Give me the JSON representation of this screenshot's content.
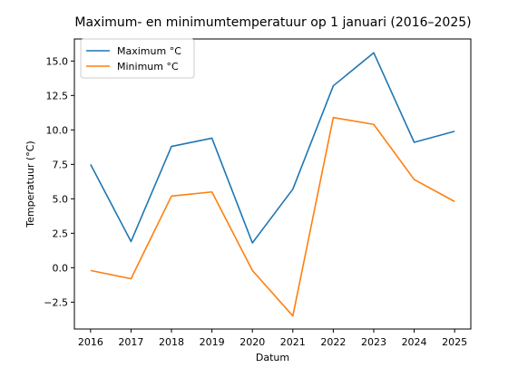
{
  "chart_data": {
    "type": "line",
    "title": "Maximum- en minimumtemperatuur op 1 januari (2016–2025)",
    "xlabel": "Datum",
    "ylabel": "Temperatuur (°C)",
    "categories": [
      "2016",
      "2017",
      "2018",
      "2019",
      "2020",
      "2021",
      "2022",
      "2023",
      "2024",
      "2025"
    ],
    "x": [
      2016,
      2017,
      2018,
      2019,
      2020,
      2021,
      2022,
      2023,
      2024,
      2025
    ],
    "xlim": [
      2015.6,
      2025.4
    ],
    "ylim": [
      -4.45,
      16.6
    ],
    "yticks": [
      -2.5,
      0.0,
      2.5,
      5.0,
      7.5,
      10.0,
      12.5,
      15.0
    ],
    "ytick_labels": [
      "−2.5",
      "0.0",
      "2.5",
      "5.0",
      "7.5",
      "10.0",
      "12.5",
      "15.0"
    ],
    "grid": false,
    "legend_position": "upper-left",
    "series": [
      {
        "name": "Maximum °C",
        "color": "#1f77b4",
        "values": [
          7.5,
          1.9,
          8.8,
          9.4,
          1.8,
          5.7,
          13.2,
          15.6,
          9.1,
          9.9
        ]
      },
      {
        "name": "Minimum °C",
        "color": "#ff7f0e",
        "values": [
          -0.2,
          -0.8,
          5.2,
          5.5,
          -0.2,
          -3.5,
          10.9,
          10.4,
          6.4,
          4.8
        ]
      }
    ]
  }
}
